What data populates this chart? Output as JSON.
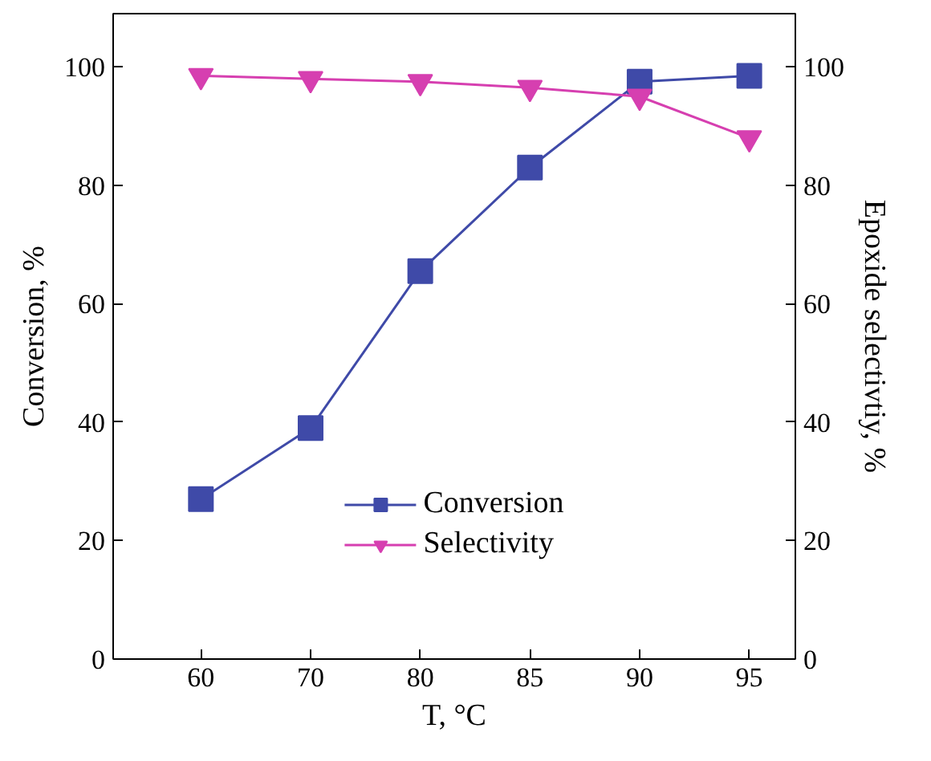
{
  "chart_data": {
    "type": "line",
    "xlabel": "T, °C",
    "ylabel": "Conversion, %",
    "y2label": "Epoxide selectivtiy, %",
    "categories": [
      "60",
      "70",
      "80",
      "85",
      "90",
      "95"
    ],
    "series": [
      {
        "name": "Conversion",
        "color": "#3f4aa8",
        "marker": "square",
        "values": [
          27,
          39,
          65.5,
          83,
          97.5,
          98.5
        ]
      },
      {
        "name": "Selectivity",
        "color": "#d63fb0",
        "marker": "triangle",
        "values": [
          98.5,
          98,
          97.5,
          96.5,
          95,
          88
        ]
      }
    ],
    "ylim": [
      0,
      109
    ],
    "yticks": [
      0,
      20,
      40,
      60,
      80,
      100
    ],
    "y2lim": [
      0,
      109
    ],
    "y2ticks": [
      0,
      20,
      40,
      60,
      80,
      100
    ],
    "grid": false,
    "legend": "bottom",
    "line_style": "solid"
  }
}
